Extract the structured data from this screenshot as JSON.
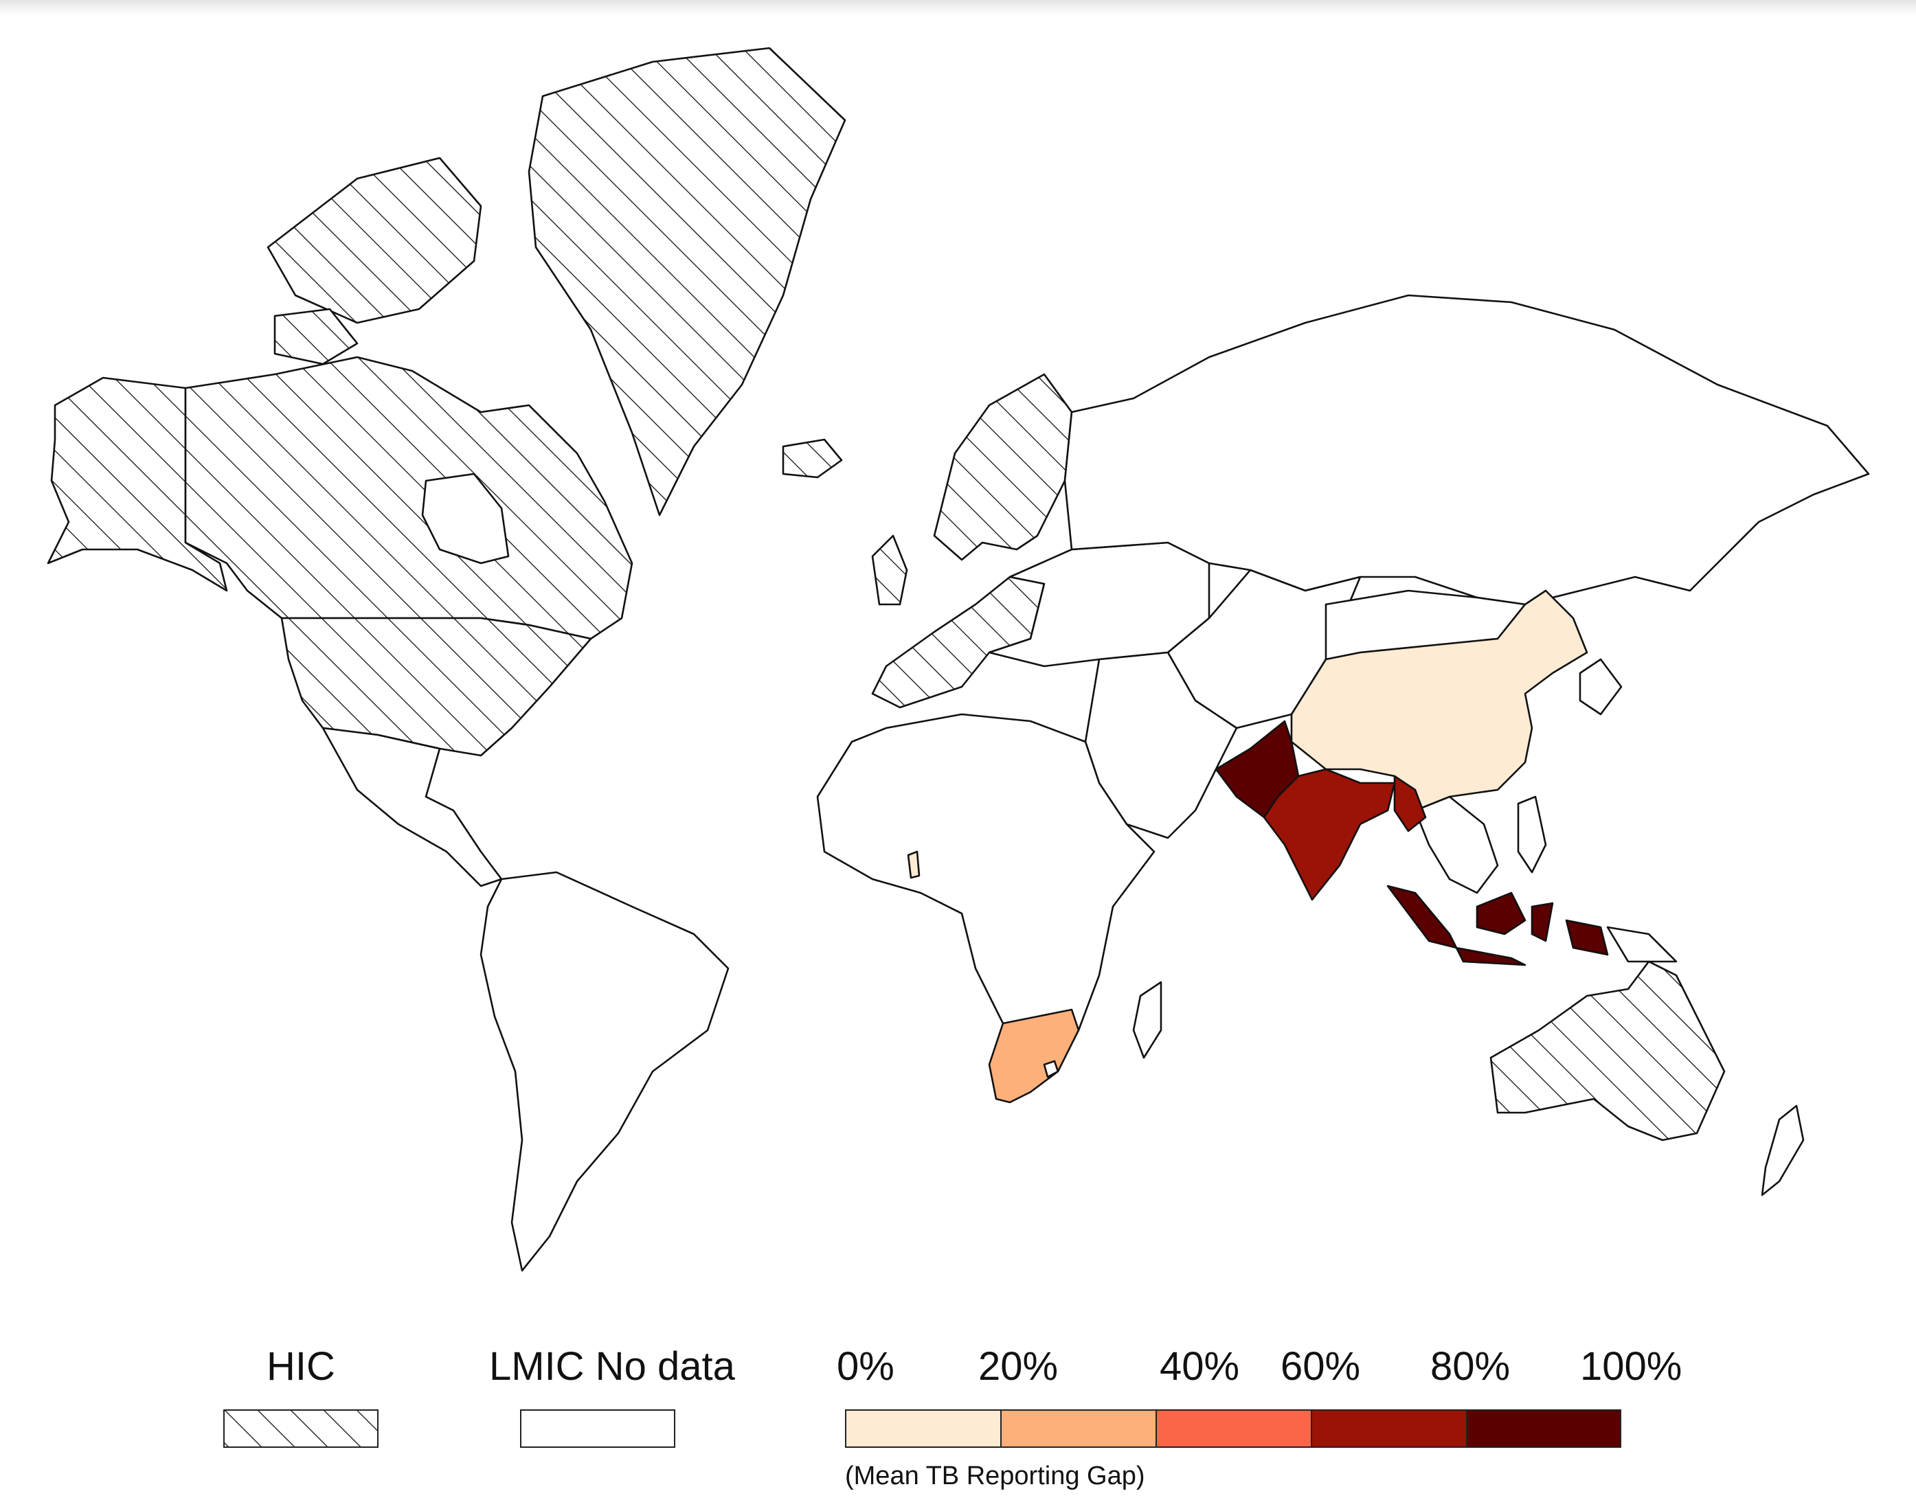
{
  "legend": {
    "hic": {
      "label": "HIC",
      "pattern": "diagonal-hatch"
    },
    "lmic_no_data": {
      "label": "LMIC No data",
      "fill": "#ffffff"
    },
    "scale": {
      "ticks": [
        "0%",
        "20%",
        "40%",
        "60%",
        "80%",
        "100%"
      ],
      "colors": [
        "#fdebd3",
        "#fdb07a",
        "#fb6548",
        "#9b1207",
        "#5a0000"
      ],
      "caption": "(Mean TB Reporting Gap)"
    }
  },
  "map_data": {
    "type": "choropleth",
    "projection": "mercator",
    "measure": "Mean TB Reporting Gap",
    "countries": [
      {
        "name": "China",
        "bin": 0,
        "value_range": "0%-20%"
      },
      {
        "name": "Ghana",
        "bin": 0,
        "value_range": "0%-20%"
      },
      {
        "name": "South Africa",
        "bin": 1,
        "value_range": "20%-40%"
      },
      {
        "name": "India",
        "bin": 3,
        "value_range": "60%-80%"
      },
      {
        "name": "Myanmar",
        "bin": 3,
        "value_range": "60%-80%"
      },
      {
        "name": "Pakistan",
        "bin": 4,
        "value_range": "80%-100%"
      },
      {
        "name": "Indonesia",
        "bin": 4,
        "value_range": "80%-100%"
      }
    ],
    "hic_regions": [
      "Canada",
      "United States",
      "Greenland",
      "Iceland",
      "Western Europe",
      "Scandinavia",
      "Australia"
    ]
  }
}
